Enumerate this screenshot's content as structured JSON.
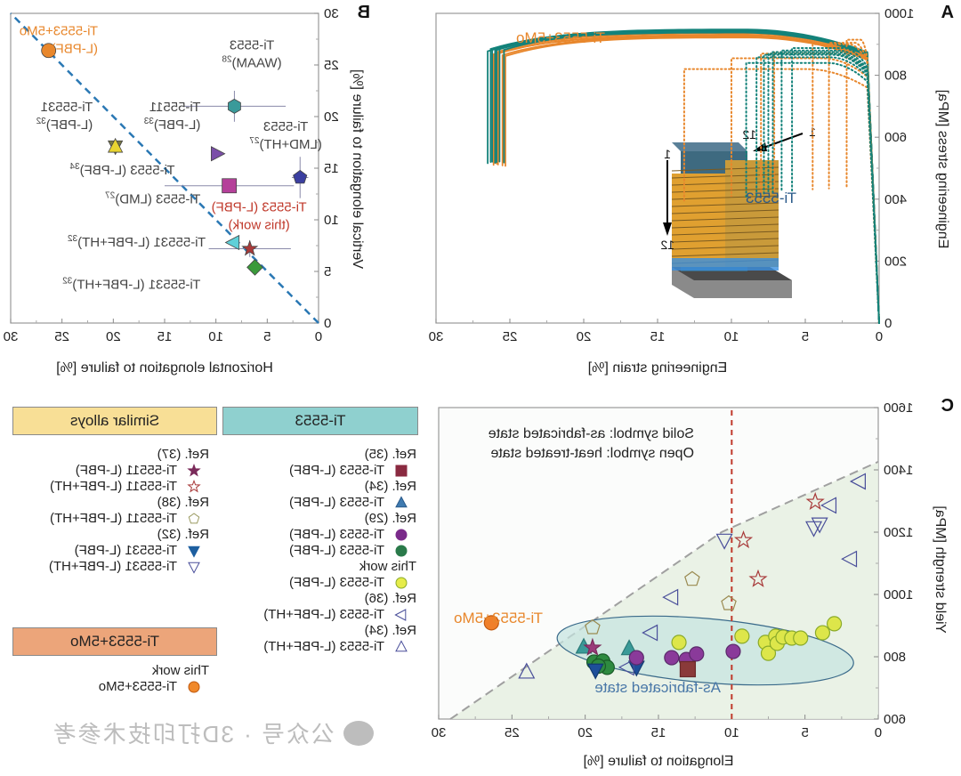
{
  "figure": {
    "panel_labels": {
      "A": "A",
      "B": "B",
      "C": "C"
    },
    "watermark": "公众号 · 3D打印技术参考",
    "watermark_icon": "wechat-icon"
  },
  "colors": {
    "teal": "#13827a",
    "orange": "#e8872c",
    "blue_dash": "#2471b0",
    "red_dash": "#c0392b",
    "ti5553_header": "#8fd0cf",
    "similar_header": "#f8df96",
    "mo_header": "#eca57a"
  },
  "chart_data": [
    {
      "panel": "A",
      "type": "line",
      "title": "",
      "xlabel": "Engineering strain [%]",
      "ylabel": "Engineering stress [MPa]",
      "xlim": [
        0,
        30
      ],
      "ylim": [
        0,
        1000
      ],
      "xticks": [
        "0",
        "5",
        "10",
        "15",
        "20",
        "25",
        "30"
      ],
      "yticks": [
        "0",
        "200",
        "400",
        "600",
        "800",
        "1000"
      ],
      "annotations": [
        {
          "text": "Ti-5553+5Mo",
          "color": "#e8872c"
        },
        {
          "text": "Ti-5553",
          "color": "#2a5a8a"
        }
      ],
      "inset": {
        "arrow_labels": [
          "1",
          "12",
          "1",
          "12"
        ],
        "description": "printed specimen block on build plate"
      },
      "series": [
        {
          "name": "Ti-5553+5Mo (solid)",
          "style": "solid",
          "color": "#e8872c",
          "fracture_strains": [
            25.8,
            25.5,
            25.9,
            26.1,
            25.3
          ],
          "uts": [
            930,
            925,
            935,
            928,
            922
          ],
          "ys": [
            860,
            855,
            865,
            850,
            858
          ]
        },
        {
          "name": "Ti-5553 (solid, teal)",
          "style": "solid",
          "color": "#13827a",
          "fracture_strains": [
            26.3,
            26.0,
            25.7,
            25.4,
            26.5,
            25.9,
            26.2
          ],
          "uts": [
            945,
            940,
            948,
            942,
            938,
            944,
            946
          ],
          "ys": [
            870,
            868,
            875,
            865,
            872,
            866,
            873
          ]
        },
        {
          "name": "Ti-5553+5Mo (dotted)",
          "style": "dotted",
          "color": "#e8872c",
          "fracture_strains": [
            13.2,
            7.1,
            4.5,
            3.4,
            10.0,
            8.0,
            2.2
          ],
          "uts": [
            820,
            875,
            900,
            905,
            855,
            870,
            915
          ]
        },
        {
          "name": "Ti-5553 (dotted)",
          "style": "dotted",
          "color": "#13827a",
          "fracture_strains": [
            9.0,
            8.3,
            7.8,
            7.5,
            7.2,
            6.6,
            5.9
          ],
          "uts": [
            840,
            858,
            866,
            870,
            875,
            880,
            888
          ]
        }
      ]
    },
    {
      "panel": "B",
      "type": "scatter",
      "xlabel": "Horizontal elongation to failure [%]",
      "ylabel": "Vertical elongation to failure [%]",
      "xlim": [
        0,
        30
      ],
      "ylim": [
        0,
        30
      ],
      "xticks": [
        "0",
        "5",
        "10",
        "15",
        "20",
        "25",
        "30"
      ],
      "yticks": [
        "0",
        "5",
        "10",
        "15",
        "20",
        "25",
        "30"
      ],
      "reference_line": "y = x (dashed)",
      "points": [
        {
          "label": "Ti-5553+5Mo",
          "label2": "(L-PBF)",
          "sup": "",
          "x": 26.3,
          "y": 26.4,
          "marker": "circle",
          "color": "#e8872c",
          "text_color": "#e8872c"
        },
        {
          "label": "Ti-5553",
          "label2": "(WAAM)",
          "sup": "28",
          "x": 8.2,
          "y": 21.0,
          "xerr": 5.0,
          "yerr": 1.5,
          "marker": "hexagon",
          "color": "#3a9a9a",
          "text_color": "#444444"
        },
        {
          "label": "Ti-55511",
          "label2": "(L-PBF)",
          "sup": "33",
          "x": 9.9,
          "y": 16.4,
          "marker": "triangle-left",
          "color": "#7b4fa8",
          "text_color": "#444444"
        },
        {
          "label": "Ti-5553",
          "label2": "(LMD+HT)",
          "sup": "27",
          "x": 1.8,
          "y": 14.1,
          "xerr": 0.8,
          "yerr": 2.0,
          "marker": "pentagon",
          "color": "#3b3fa0",
          "text_color": "#444444"
        },
        {
          "label": "Ti-55531",
          "label2": "(L-PBF)",
          "sup": "32",
          "x": 19.8,
          "y": 17.1,
          "yerr": 0.8,
          "marker": "triangle-down",
          "color": "#777744",
          "text_color": "#444444"
        },
        {
          "label": "Ti-5553 (L-PBF)",
          "label2": "",
          "sup": "34",
          "x": 19.8,
          "y": 17.1,
          "marker": "triangle-up",
          "color": "#e8d430",
          "text_color": "#444444"
        },
        {
          "label": "Ti-5553 (LMD)",
          "label2": "",
          "sup": "27",
          "x": 8.7,
          "y": 13.3,
          "xerr": 6.3,
          "marker": "square",
          "color": "#b5409a",
          "text_color": "#444444"
        },
        {
          "label": "Ti-5553 (L-PBF)",
          "label2": "(this work)",
          "sup": "",
          "x": 6.7,
          "y": 7.2,
          "xerr": 4.0,
          "yerr": 0.8,
          "marker": "star",
          "color": "#a83a3a",
          "text_color": "#c0392b"
        },
        {
          "label": "Ti-55531 (L-PBF+HT)",
          "label2": "",
          "sup": "32",
          "x": 8.3,
          "y": 7.8,
          "marker": "triangle-right",
          "color": "#5fd0d8",
          "text_color": "#444444"
        },
        {
          "label": "Ti-55531 (L-PBF+HT)",
          "label2": "",
          "sup": "32",
          "x": 6.2,
          "y": 5.4,
          "yerr": 0.6,
          "marker": "diamond",
          "color": "#3a9a3a",
          "text_color": "#444444"
        }
      ]
    },
    {
      "panel": "C",
      "type": "scatter",
      "xlabel": "Elongation to failure [%]",
      "ylabel": "Yield strength [MPa]",
      "xlim": [
        0,
        30
      ],
      "ylim": [
        600,
        1600
      ],
      "xticks": [
        "0",
        "5",
        "10",
        "15",
        "20",
        "25",
        "30"
      ],
      "yticks": [
        "600",
        "800",
        "1000",
        "1200",
        "1400",
        "1600"
      ],
      "annotations": [
        {
          "text": "Solid symbol: as-fabricated state"
        },
        {
          "text": "Open symbol: heat-treated state"
        },
        {
          "text": "As-fabricated state",
          "color": "#4a78a8"
        },
        {
          "text": "Ti-5553+5Mo",
          "color": "#e8872c"
        }
      ],
      "vline_x": 10,
      "boundary": [
        [
          29.6,
          560
        ],
        [
          10.7,
          1200
        ],
        [
          0,
          1426
        ]
      ],
      "points": [
        {
          "group": "mo",
          "x": 26.4,
          "y": 909,
          "marker": "circle",
          "fill": "#f07f2a",
          "stroke": "#c05a10"
        },
        {
          "group": "ref34ht",
          "x": 24.0,
          "y": 751,
          "marker": "triangle-up",
          "fill": "none",
          "stroke": "#4a4f9a"
        },
        {
          "group": "ref34",
          "x": 20.1,
          "y": 831,
          "marker": "triangle-up",
          "fill": "#3a9a98",
          "stroke": "#2a7a78"
        },
        {
          "group": "ref34",
          "x": 17.0,
          "y": 826,
          "marker": "triangle-up",
          "fill": "#3a9a98",
          "stroke": "#2a7a78"
        },
        {
          "group": "ref37",
          "x": 19.5,
          "y": 829,
          "marker": "star",
          "fill": "#9a3a7a",
          "stroke": "#7a2a5a"
        },
        {
          "group": "ref29g",
          "x": 19.4,
          "y": 783,
          "marker": "circle",
          "fill": "#2e8a40",
          "stroke": "#1a5a28"
        },
        {
          "group": "ref29g",
          "x": 18.8,
          "y": 786,
          "marker": "circle",
          "fill": "#2e8a40",
          "stroke": "#1a5a28"
        },
        {
          "group": "ref29g",
          "x": 18.5,
          "y": 766,
          "marker": "circle",
          "fill": "#2e8a40",
          "stroke": "#1a5a28"
        },
        {
          "group": "ref29g",
          "x": 19.1,
          "y": 770,
          "marker": "circle",
          "fill": "#2e8a40",
          "stroke": "#1a5a28"
        },
        {
          "group": "ref32",
          "x": 19.3,
          "y": 757,
          "marker": "triangle-down",
          "fill": "#1d4f9a",
          "stroke": "#123a70"
        },
        {
          "group": "ref32",
          "x": 16.5,
          "y": 766,
          "marker": "triangle-down",
          "fill": "#1d4f9a",
          "stroke": "#123a70"
        },
        {
          "group": "ref38",
          "x": 19.5,
          "y": 894,
          "marker": "pentagon",
          "fill": "none",
          "stroke": "#9a8a50"
        },
        {
          "group": "ref38",
          "x": 12.7,
          "y": 1049,
          "marker": "pentagon",
          "fill": "none",
          "stroke": "#9a8a50"
        },
        {
          "group": "ref38",
          "x": 10.2,
          "y": 971,
          "marker": "pentagon",
          "fill": "none",
          "stroke": "#9a8a50"
        },
        {
          "group": "ref36",
          "x": 15.5,
          "y": 877,
          "marker": "triangle-right",
          "fill": "none",
          "stroke": "#4a4f9a"
        },
        {
          "group": "ref36",
          "x": 17.1,
          "y": 766,
          "marker": "triangle-right",
          "fill": "none",
          "stroke": "#4a4f9a"
        },
        {
          "group": "ref36",
          "x": 14.1,
          "y": 991,
          "marker": "triangle-right",
          "fill": "none",
          "stroke": "#4a4f9a"
        },
        {
          "group": "ref36",
          "x": 3.3,
          "y": 1286,
          "marker": "triangle-right",
          "fill": "none",
          "stroke": "#4a4f9a"
        },
        {
          "group": "ref36",
          "x": 1.9,
          "y": 1114,
          "marker": "triangle-right",
          "fill": "none",
          "stroke": "#4a4f9a"
        },
        {
          "group": "ref36",
          "x": 1.3,
          "y": 1363,
          "marker": "triangle-right",
          "fill": "none",
          "stroke": "#4a4f9a"
        },
        {
          "group": "ref29p",
          "x": 16.5,
          "y": 797,
          "marker": "circle",
          "fill": "#8a3a9a",
          "stroke": "#5a2a6a"
        },
        {
          "group": "ref29p",
          "x": 14.1,
          "y": 797,
          "marker": "circle",
          "fill": "#8a3a9a",
          "stroke": "#5a2a6a"
        },
        {
          "group": "ref29p",
          "x": 13.1,
          "y": 791,
          "marker": "circle",
          "fill": "#8a3a9a",
          "stroke": "#5a2a6a"
        },
        {
          "group": "ref29p",
          "x": 12.4,
          "y": 809,
          "marker": "circle",
          "fill": "#8a3a9a",
          "stroke": "#5a2a6a"
        },
        {
          "group": "ref29p",
          "x": 9.9,
          "y": 817,
          "marker": "circle",
          "fill": "#8a3a9a",
          "stroke": "#5a2a6a"
        },
        {
          "group": "ref35",
          "x": 13.0,
          "y": 760,
          "marker": "square",
          "fill": "#8a3a3a",
          "stroke": "#6a2a2a"
        },
        {
          "group": "thiswork",
          "x": 13.6,
          "y": 846,
          "marker": "circle",
          "fill": "#dde64a",
          "stroke": "#8aaa2a"
        },
        {
          "group": "thiswork",
          "x": 9.3,
          "y": 866,
          "marker": "circle",
          "fill": "#dde64a",
          "stroke": "#8aaa2a"
        },
        {
          "group": "thiswork",
          "x": 7.7,
          "y": 846,
          "marker": "circle",
          "fill": "#dde64a",
          "stroke": "#8aaa2a"
        },
        {
          "group": "thiswork",
          "x": 7.5,
          "y": 811,
          "marker": "circle",
          "fill": "#dde64a",
          "stroke": "#8aaa2a"
        },
        {
          "group": "thiswork",
          "x": 7.0,
          "y": 866,
          "marker": "circle",
          "fill": "#dde64a",
          "stroke": "#8aaa2a"
        },
        {
          "group": "thiswork",
          "x": 6.9,
          "y": 843,
          "marker": "circle",
          "fill": "#dde64a",
          "stroke": "#8aaa2a"
        },
        {
          "group": "thiswork",
          "x": 6.5,
          "y": 863,
          "marker": "circle",
          "fill": "#dde64a",
          "stroke": "#8aaa2a"
        },
        {
          "group": "thiswork",
          "x": 5.9,
          "y": 860,
          "marker": "circle",
          "fill": "#dde64a",
          "stroke": "#8aaa2a"
        },
        {
          "group": "thiswork",
          "x": 5.3,
          "y": 860,
          "marker": "circle",
          "fill": "#dde64a",
          "stroke": "#8aaa2a"
        },
        {
          "group": "thiswork",
          "x": 3.8,
          "y": 877,
          "marker": "circle",
          "fill": "#dde64a",
          "stroke": "#8aaa2a"
        },
        {
          "group": "thiswork",
          "x": 3.0,
          "y": 906,
          "marker": "circle",
          "fill": "#dde64a",
          "stroke": "#8aaa2a"
        },
        {
          "group": "ref32ht",
          "x": 10.5,
          "y": 1174,
          "marker": "triangle-down",
          "fill": "none",
          "stroke": "#4a4f9a"
        },
        {
          "group": "ref32ht",
          "x": 4.4,
          "y": 1214,
          "marker": "triangle-down",
          "fill": "none",
          "stroke": "#4a4f9a"
        },
        {
          "group": "ref32ht",
          "x": 4.0,
          "y": 1226,
          "marker": "triangle-down",
          "fill": "none",
          "stroke": "#4a4f9a"
        },
        {
          "group": "ref37ht",
          "x": 9.2,
          "y": 1174,
          "marker": "star",
          "fill": "none",
          "stroke": "#a83a3a"
        },
        {
          "group": "ref37ht",
          "x": 8.2,
          "y": 1049,
          "marker": "star",
          "fill": "none",
          "stroke": "#a83a3a"
        },
        {
          "group": "ref37ht",
          "x": 4.3,
          "y": 1297,
          "marker": "star",
          "fill": "none",
          "stroke": "#a83a3a"
        }
      ]
    }
  ],
  "legend": {
    "ti5553": {
      "header": "Ti-5553",
      "rows": [
        {
          "type": "ref",
          "text": "Ref. (35)"
        },
        {
          "type": "item",
          "marker": "square",
          "fill": "#8a2a40",
          "stroke": "#8a2a40",
          "text": "Ti-5553 (L-PBF)"
        },
        {
          "type": "ref",
          "text": "Ref. (34)"
        },
        {
          "type": "item",
          "marker": "triangle-up",
          "fill": "#3f7ab0",
          "stroke": "#2a5a8a",
          "text": "Ti-5553 (L-PBF)"
        },
        {
          "type": "ref",
          "text": "Ref. (29)"
        },
        {
          "type": "item",
          "marker": "circle",
          "fill": "#7a2a8a",
          "stroke": "#7a2a8a",
          "text": "Ti-5553 (L-PBF)"
        },
        {
          "type": "item",
          "marker": "circle",
          "fill": "#2a7a4a",
          "stroke": "#2a7a4a",
          "text": "Ti-5553 (L-PBF)"
        },
        {
          "type": "ref",
          "text": "This work"
        },
        {
          "type": "item",
          "marker": "circle",
          "fill": "#e6ec4a",
          "stroke": "#8aaa2a",
          "text": "Ti-5553 (L-PBF)"
        },
        {
          "type": "ref",
          "text": "Ref. (36)"
        },
        {
          "type": "item",
          "marker": "triangle-right",
          "fill": "none",
          "stroke": "#4a4f9a",
          "text": "Ti-5553 (L-PBF+HT)"
        },
        {
          "type": "ref",
          "text": "Ref. (34)"
        },
        {
          "type": "item",
          "marker": "triangle-up",
          "fill": "none",
          "stroke": "#4a4f9a",
          "text": "Ti-5553 (L-PBF+HT)"
        }
      ]
    },
    "similar": {
      "header": "Similar alloys",
      "rows": [
        {
          "type": "ref",
          "text": "Ref. (37)"
        },
        {
          "type": "item",
          "marker": "star",
          "fill": "#7a2a5a",
          "stroke": "#7a2a5a",
          "text": "Ti-55511 (L-PBF)"
        },
        {
          "type": "item",
          "marker": "star",
          "fill": "none",
          "stroke": "#a83a3a",
          "text": "Ti-55511 (L-PBF+HT)"
        },
        {
          "type": "ref",
          "text": "Ref. (38)"
        },
        {
          "type": "item",
          "marker": "pentagon",
          "fill": "none",
          "stroke": "#9a9a60",
          "text": "Ti-55511 (L-PBF+HT)"
        },
        {
          "type": "ref",
          "text": "Ref. (32)"
        },
        {
          "type": "item",
          "marker": "triangle-down",
          "fill": "#1d5fa0",
          "stroke": "#1d5fa0",
          "text": "Ti-55531 (L-PBF)"
        },
        {
          "type": "item",
          "marker": "triangle-down",
          "fill": "none",
          "stroke": "#4a4f9a",
          "text": "Ti-55531 (L-PBF+HT)"
        }
      ]
    },
    "mo": {
      "header": "Ti-5553+5Mo",
      "rows": [
        {
          "type": "ref",
          "text": "This work"
        },
        {
          "type": "item",
          "marker": "circle",
          "fill": "#f0882a",
          "stroke": "#c05a10",
          "text": "Ti-5553+5Mo"
        }
      ]
    }
  }
}
